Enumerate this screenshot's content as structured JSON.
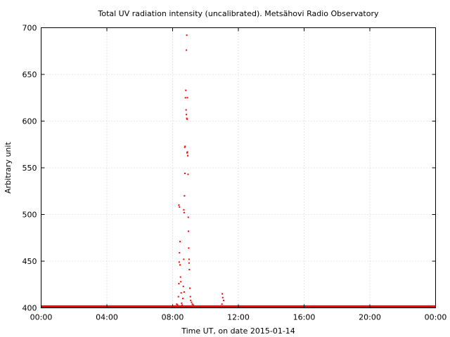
{
  "chart_data": {
    "type": "scatter",
    "title": "Total UV radiation intensity (uncalibrated). Metsähovi Radio Observatory",
    "xlabel": "Time UT, on date 2015-01-14",
    "ylabel": "Arbitrary unit",
    "x_ticks": [
      "00:00",
      "04:00",
      "08:00",
      "12:00",
      "16:00",
      "20:00",
      "00:00"
    ],
    "y_ticks": [
      400,
      450,
      500,
      550,
      600,
      650,
      700
    ],
    "xlim": [
      0,
      24
    ],
    "ylim": [
      400,
      700
    ],
    "grid": true,
    "marker_color": "#ff0000",
    "baseline": {
      "x_range": [
        0,
        24
      ],
      "values": [
        401,
        402
      ]
    },
    "points": [
      [
        8.2,
        402
      ],
      [
        8.25,
        404
      ],
      [
        8.3,
        403
      ],
      [
        8.35,
        412
      ],
      [
        8.38,
        426
      ],
      [
        8.4,
        449
      ],
      [
        8.42,
        459
      ],
      [
        8.45,
        471
      ],
      [
        8.38,
        510
      ],
      [
        8.42,
        508
      ],
      [
        8.45,
        446
      ],
      [
        8.48,
        433
      ],
      [
        8.5,
        428
      ],
      [
        8.52,
        416
      ],
      [
        8.55,
        405
      ],
      [
        8.58,
        403
      ],
      [
        8.6,
        402
      ],
      [
        8.62,
        410
      ],
      [
        8.65,
        423
      ],
      [
        8.68,
        452
      ],
      [
        8.7,
        417
      ],
      [
        8.68,
        505
      ],
      [
        8.7,
        502
      ],
      [
        8.72,
        520
      ],
      [
        8.75,
        544
      ],
      [
        8.74,
        572
      ],
      [
        8.76,
        573
      ],
      [
        8.78,
        625
      ],
      [
        8.8,
        633
      ],
      [
        8.82,
        612
      ],
      [
        8.84,
        607
      ],
      [
        8.86,
        603
      ],
      [
        8.84,
        676
      ],
      [
        8.86,
        692
      ],
      [
        8.88,
        602
      ],
      [
        8.88,
        566
      ],
      [
        8.9,
        567
      ],
      [
        8.9,
        625
      ],
      [
        8.92,
        563
      ],
      [
        8.94,
        543
      ],
      [
        8.95,
        497
      ],
      [
        8.96,
        482
      ],
      [
        8.98,
        464
      ],
      [
        9.0,
        452
      ],
      [
        9.0,
        448
      ],
      [
        9.02,
        441
      ],
      [
        9.05,
        421
      ],
      [
        9.08,
        412
      ],
      [
        9.1,
        408
      ],
      [
        9.15,
        406
      ],
      [
        9.2,
        404
      ],
      [
        9.25,
        403
      ],
      [
        9.3,
        402
      ],
      [
        10.95,
        402
      ],
      [
        11.0,
        404
      ],
      [
        11.02,
        415
      ],
      [
        11.05,
        411
      ],
      [
        11.1,
        408
      ]
    ]
  }
}
